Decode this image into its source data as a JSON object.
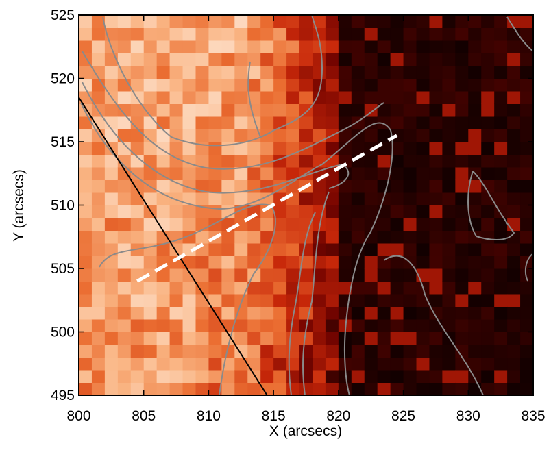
{
  "chart_data": {
    "type": "image",
    "xlabel": "X (arcsecs)",
    "ylabel": "Y (arcsecs)",
    "xlim": [
      800,
      835
    ],
    "ylim": [
      495,
      525
    ],
    "xticks": [
      800,
      805,
      810,
      815,
      820,
      825,
      830,
      835
    ],
    "yticks": [
      495,
      500,
      505,
      510,
      515,
      520,
      525
    ],
    "lines": [
      {
        "color": "#000000",
        "x": [
          800,
          814.5
        ],
        "y": [
          518.5,
          495
        ]
      },
      {
        "color": "#ffffff",
        "dash": true,
        "x": [
          804.5,
          824.5
        ],
        "y": [
          504,
          515.5
        ]
      }
    ]
  }
}
